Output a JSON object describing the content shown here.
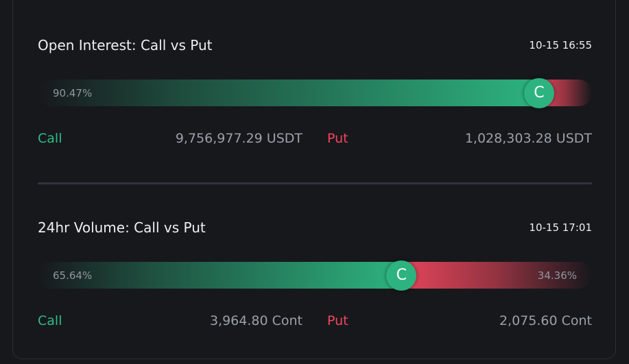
{
  "panels": [
    {
      "title": "Open Interest: Call vs Put",
      "time": "10-15 16:55",
      "call_share": {
        "value": 90.47,
        "label": "90.47%"
      },
      "knob_label": "C",
      "call_label": "Call",
      "call_amount": "9,756,977.29 USDT",
      "put_label": "Put",
      "put_amount": "1,028,303.28 USDT"
    },
    {
      "title": "24hr Volume: Call vs Put",
      "time": "10-15 17:01",
      "call_share": {
        "value": 65.64,
        "label": "65.64%"
      },
      "put_share": {
        "value": 34.36,
        "label": "34.36%"
      },
      "knob_label": "C",
      "call_label": "Call",
      "call_amount": "3,964.80 Cont",
      "put_label": "Put",
      "put_amount": "2,075.60 Cont"
    }
  ]
}
